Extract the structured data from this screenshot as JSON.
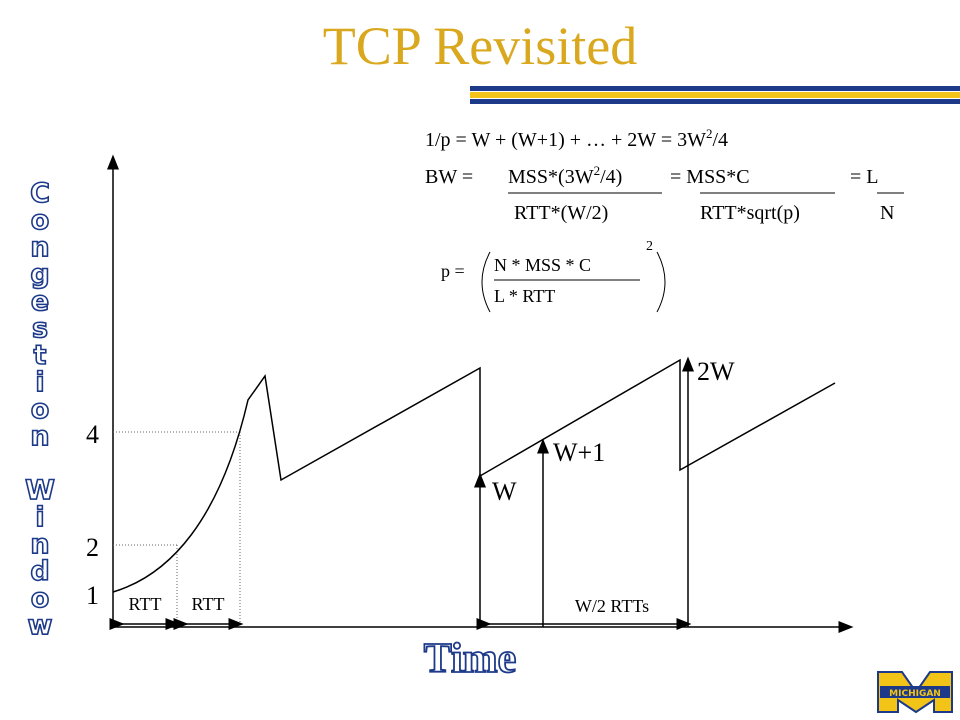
{
  "title": "TCP Revisited",
  "y_axis_label": "Congestion Window",
  "x_axis_label": "Time",
  "y_labels": [
    "4",
    "2",
    "1"
  ],
  "interval_labels": [
    "RTT",
    "RTT",
    "W/2 RTTs"
  ],
  "point_labels": [
    "W",
    "W+1",
    "2W"
  ],
  "formulas": {
    "line1": [
      "1/p = W + (W+1) + … + 2W = 3W",
      "2",
      "/4"
    ],
    "bw_prefix": "BW =",
    "bw_fractions": [
      {
        "num": [
          "MSS*(3W",
          "2",
          "/4)"
        ],
        "den": "RTT*(W/2)"
      },
      {
        "num": [
          "= MSS*C"
        ],
        "den": "RTT*sqrt(p)"
      },
      {
        "num": [
          "= L"
        ],
        "den": "N"
      }
    ],
    "p_prefix": "p =",
    "p_num": "N * MSS * C",
    "p_den": "L * RTT",
    "p_exp": "2"
  },
  "logo": "MICHIGAN"
}
